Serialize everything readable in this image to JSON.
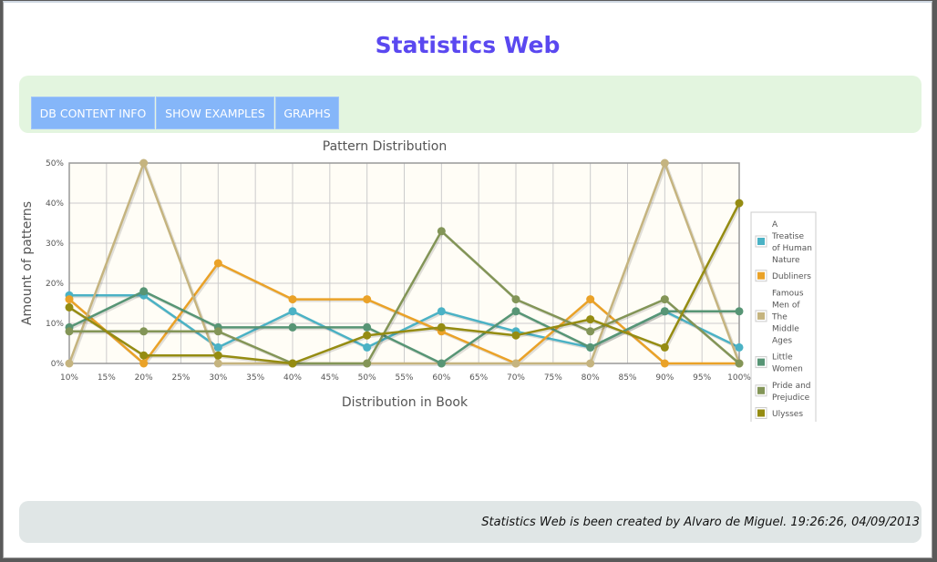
{
  "page": {
    "title": "Statistics Web"
  },
  "menu": {
    "items": [
      {
        "label": "DB CONTENT INFO"
      },
      {
        "label": "SHOW EXAMPLES"
      },
      {
        "label": "GRAPHS"
      }
    ]
  },
  "footer": {
    "text": "Statistics Web is been created by Alvaro de Miguel. 19:26:26, 04/09/2013"
  },
  "chart_data": {
    "type": "line",
    "title": "Pattern Distribution",
    "xlabel": "Distribution in Book",
    "ylabel": "Amount of patterns",
    "x": [
      10,
      20,
      30,
      40,
      50,
      60,
      70,
      80,
      90,
      100
    ],
    "x_ticks": [
      "10%",
      "15%",
      "20%",
      "25%",
      "30%",
      "35%",
      "40%",
      "45%",
      "50%",
      "55%",
      "60%",
      "65%",
      "70%",
      "75%",
      "80%",
      "85%",
      "90%",
      "95%",
      "100%"
    ],
    "y_ticks": [
      "0%",
      "10%",
      "20%",
      "30%",
      "40%",
      "50%"
    ],
    "xlim": [
      10,
      100
    ],
    "ylim": [
      0,
      50
    ],
    "grid": true,
    "legend_position": "right",
    "series": [
      {
        "name": "A Treatise of Human Nature",
        "color": "#4bb2c5",
        "values": [
          17,
          17,
          4,
          13,
          4,
          13,
          8,
          4,
          13,
          4
        ]
      },
      {
        "name": "Dubliners",
        "color": "#eaa228",
        "values": [
          16,
          0,
          25,
          16,
          16,
          8,
          0,
          16,
          0,
          0
        ]
      },
      {
        "name": "Famous Men of The Middle Ages",
        "color": "#c5b47f",
        "values": [
          0,
          50,
          0,
          0,
          0,
          0,
          0,
          0,
          50,
          0
        ]
      },
      {
        "name": "Little Women",
        "color": "#579575",
        "values": [
          9,
          18,
          9,
          9,
          9,
          0,
          13,
          4,
          13,
          13
        ]
      },
      {
        "name": "Pride and Prejudice",
        "color": "#839557",
        "values": [
          8,
          8,
          8,
          0,
          0,
          33,
          16,
          8,
          16,
          0
        ]
      },
      {
        "name": "Ulysses",
        "color": "#958c12",
        "values": [
          14,
          2,
          2,
          0,
          7,
          9,
          7,
          11,
          4,
          40
        ]
      }
    ]
  }
}
